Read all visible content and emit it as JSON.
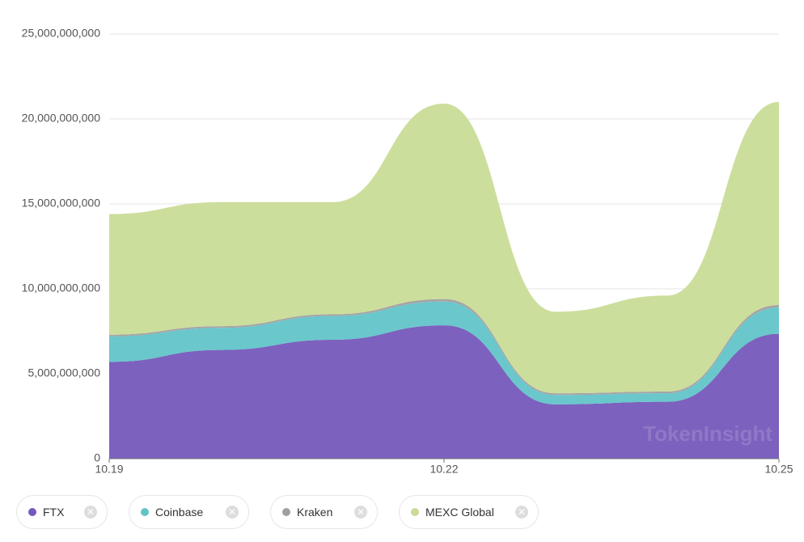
{
  "chart_data": {
    "type": "stacked_area",
    "categories": [
      "10.19",
      null,
      null,
      "10.22",
      null,
      null,
      "10.25"
    ],
    "series": [
      {
        "name": "FTX",
        "color": "#7559bb",
        "values": [
          5700000000,
          6400000000,
          7000000000,
          7850000000,
          3200000000,
          3350000000,
          7350000000
        ]
      },
      {
        "name": "Coinbase",
        "color": "#62c4c8",
        "values": [
          1500000000,
          1300000000,
          1400000000,
          1400000000,
          550000000,
          500000000,
          1550000000
        ]
      },
      {
        "name": "Kraken",
        "color": "#a0a0a0",
        "values": [
          100000000,
          100000000,
          100000000,
          150000000,
          100000000,
          100000000,
          150000000
        ]
      },
      {
        "name": "MEXC Global",
        "color": "#c9dc97",
        "values": [
          7100000000,
          7300000000,
          6600000000,
          11500000000,
          4800000000,
          5650000000,
          11950000000
        ]
      }
    ],
    "ylim": [
      0,
      25000000000
    ],
    "yticks": [
      0,
      {
        "value": 5000000000,
        "label": "5,000,000,000"
      },
      {
        "value": 10000000000,
        "label": "10,000,000,000"
      },
      {
        "value": 15000000000,
        "label": "15,000,000,000"
      },
      {
        "value": 20000000000,
        "label": "20,000,000,000"
      },
      {
        "value": 25000000000,
        "label": "25,000,000,000"
      }
    ],
    "grid": true,
    "watermark": "TokenInsight"
  }
}
